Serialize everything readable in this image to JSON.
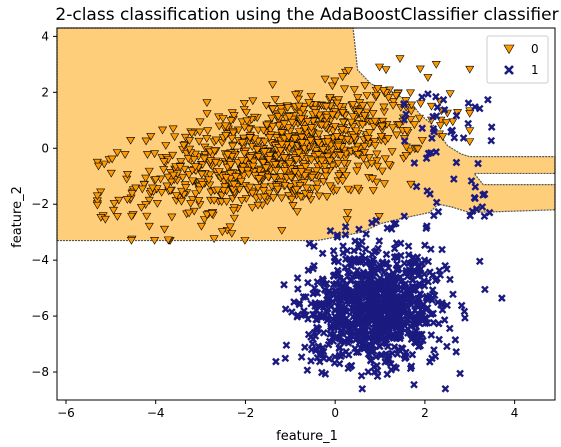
{
  "chart_data": {
    "type": "scatter",
    "title": "2-class classification using the AdaBoostClassifier classifier",
    "xlabel": "feature_1",
    "ylabel": "feature_2",
    "xlim": [
      -6.2,
      4.9
    ],
    "ylim": [
      -9.0,
      4.3
    ],
    "x_ticks": [
      -6,
      -4,
      -2,
      0,
      2,
      4
    ],
    "y_ticks": [
      -8,
      -6,
      -4,
      -2,
      0,
      2,
      4
    ],
    "legend_position": "top-right",
    "colors": {
      "class0_marker": "#ff9900",
      "class1_marker": "#1a1a80",
      "region0_fill": "#ffce7a",
      "region1_fill": "#ffffff",
      "marker_edge": "#000000"
    },
    "decision_region_class0": [
      [
        -6.2,
        2.6
      ],
      [
        -6.2,
        -3.3
      ],
      [
        -2.2,
        -3.3
      ],
      [
        -0.4,
        -3.3
      ],
      [
        0.6,
        -3.0
      ],
      [
        1.0,
        -2.7
      ],
      [
        1.5,
        -2.5
      ],
      [
        2.1,
        -2.3
      ],
      [
        2.3,
        -2.0
      ],
      [
        2.6,
        -2.1
      ],
      [
        3.0,
        -2.3
      ],
      [
        4.9,
        -2.2
      ],
      [
        4.9,
        -1.3
      ],
      [
        3.3,
        -1.3
      ],
      [
        3.1,
        -0.9
      ],
      [
        4.9,
        -0.9
      ],
      [
        4.9,
        -0.3
      ],
      [
        3.0,
        -0.3
      ],
      [
        2.8,
        -0.2
      ],
      [
        2.5,
        0.1
      ],
      [
        2.2,
        0.8
      ],
      [
        1.9,
        1.2
      ],
      [
        1.7,
        1.6
      ],
      [
        1.3,
        2.0
      ],
      [
        0.8,
        2.3
      ],
      [
        0.5,
        2.8
      ],
      [
        0.4,
        4.3
      ],
      [
        -6.2,
        4.3
      ]
    ],
    "series": [
      {
        "name": "0",
        "marker": "triangle-down",
        "n": 1000,
        "center": [
          -1.2,
          -0.2
        ],
        "spread": [
          1.6,
          1.0
        ],
        "x_range": [
          -5.3,
          3.0
        ],
        "y_range": [
          -3.3,
          3.2
        ]
      },
      {
        "name": "1",
        "marker": "x",
        "n": 1000,
        "center": [
          0.9,
          -5.6
        ],
        "spread": [
          0.75,
          1.1
        ],
        "x_range": [
          -2.6,
          4.0
        ],
        "y_range": [
          -8.6,
          2.7
        ]
      }
    ]
  }
}
